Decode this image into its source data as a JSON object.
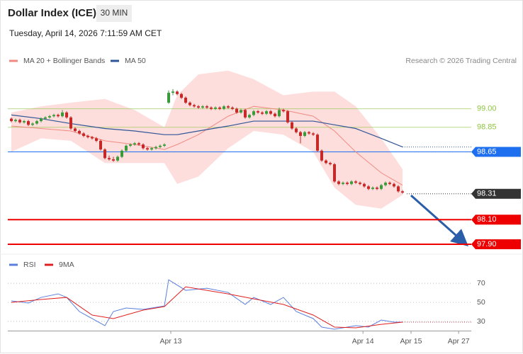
{
  "header": {
    "title": "Dollar Index (ICE)",
    "timeframe": "30 MIN",
    "timestamp": "Tuesday, April 14, 2026 7:11:59 AM CET"
  },
  "chart_data": [
    {
      "type": "candlestick",
      "credit": "Research © 2026 Trading Central",
      "up_color": "#3a9a3a",
      "down_color": "#c62828",
      "xlim": [
        0,
        108.17
      ],
      "ylim": [
        97.86,
        99.32
      ],
      "candles": [
        [
          98.92,
          98.93,
          98.89,
          98.9
        ],
        [
          98.9,
          98.92,
          98.89,
          98.91
        ],
        [
          98.91,
          98.92,
          98.88,
          98.89
        ],
        [
          98.89,
          98.91,
          98.88,
          98.9
        ],
        [
          98.9,
          98.91,
          98.86,
          98.87
        ],
        [
          98.87,
          98.89,
          98.86,
          98.88
        ],
        [
          98.88,
          98.91,
          98.87,
          98.9
        ],
        [
          98.9,
          98.93,
          98.89,
          98.92
        ],
        [
          98.92,
          98.94,
          98.91,
          98.93
        ],
        [
          98.93,
          98.95,
          98.92,
          98.94
        ],
        [
          98.94,
          98.96,
          98.93,
          98.95
        ],
        [
          98.95,
          98.96,
          98.93,
          98.94
        ],
        [
          98.94,
          98.99,
          98.93,
          98.97
        ],
        [
          98.97,
          98.98,
          98.92,
          98.93
        ],
        [
          98.93,
          98.94,
          98.83,
          98.84
        ],
        [
          98.84,
          98.85,
          98.81,
          98.82
        ],
        [
          98.82,
          98.83,
          98.79,
          98.8
        ],
        [
          98.8,
          98.81,
          98.77,
          98.78
        ],
        [
          98.78,
          98.79,
          98.76,
          98.77
        ],
        [
          98.77,
          98.78,
          98.75,
          98.76
        ],
        [
          98.76,
          98.77,
          98.73,
          98.74
        ],
        [
          98.74,
          98.75,
          98.66,
          98.67
        ],
        [
          98.67,
          98.68,
          98.59,
          98.6
        ],
        [
          98.6,
          98.62,
          98.58,
          98.59
        ],
        [
          98.59,
          98.61,
          98.57,
          98.58
        ],
        [
          98.58,
          98.62,
          98.57,
          98.61
        ],
        [
          98.61,
          98.67,
          98.6,
          98.66
        ],
        [
          98.66,
          98.71,
          98.65,
          98.7
        ],
        [
          98.7,
          98.72,
          98.69,
          98.71
        ],
        [
          98.71,
          98.73,
          98.7,
          98.72
        ],
        [
          98.72,
          98.73,
          98.7,
          98.71
        ],
        [
          98.71,
          98.72,
          98.67,
          98.68
        ],
        [
          98.68,
          98.69,
          98.66,
          98.67
        ],
        [
          98.67,
          98.69,
          98.66,
          98.68
        ],
        [
          98.68,
          98.7,
          98.67,
          98.69
        ],
        [
          98.69,
          98.71,
          98.68,
          98.7
        ],
        [
          98.7,
          98.72,
          98.69,
          98.71
        ],
        [
          99.05,
          99.15,
          99.04,
          99.13
        ],
        [
          99.13,
          99.16,
          99.11,
          99.14
        ],
        [
          99.14,
          99.15,
          99.11,
          99.12
        ],
        [
          99.12,
          99.13,
          99.08,
          99.09
        ],
        [
          99.09,
          99.1,
          99.04,
          99.05
        ],
        [
          99.05,
          99.06,
          99.02,
          99.03
        ],
        [
          99.03,
          99.04,
          99.01,
          99.02
        ],
        [
          99.02,
          99.03,
          99.0,
          99.01
        ],
        [
          99.01,
          99.03,
          99.0,
          99.02
        ],
        [
          99.02,
          99.03,
          99.0,
          99.01
        ],
        [
          99.01,
          99.02,
          98.99,
          99.0
        ],
        [
          99.0,
          99.02,
          98.99,
          99.01
        ],
        [
          99.01,
          99.02,
          98.99,
          99.0
        ],
        [
          99.0,
          99.03,
          98.99,
          99.02
        ],
        [
          99.02,
          99.03,
          99.0,
          99.01
        ],
        [
          99.01,
          99.02,
          98.99,
          99.0
        ],
        [
          99.0,
          99.01,
          98.96,
          98.97
        ],
        [
          98.97,
          99.0,
          98.96,
          98.99
        ],
        [
          98.99,
          99.0,
          98.92,
          98.93
        ],
        [
          98.93,
          98.96,
          98.92,
          98.95
        ],
        [
          98.95,
          98.99,
          98.94,
          98.98
        ],
        [
          98.98,
          98.99,
          98.96,
          98.97
        ],
        [
          98.97,
          98.98,
          98.95,
          98.96
        ],
        [
          98.96,
          98.99,
          98.95,
          98.98
        ],
        [
          98.98,
          98.99,
          98.95,
          98.96
        ],
        [
          98.96,
          98.97,
          98.93,
          98.94
        ],
        [
          98.94,
          99.01,
          98.93,
          98.99
        ],
        [
          98.99,
          99.0,
          98.97,
          98.98
        ],
        [
          98.98,
          98.99,
          98.88,
          98.89
        ],
        [
          98.89,
          98.9,
          98.83,
          98.84
        ],
        [
          98.84,
          98.85,
          98.8,
          98.81
        ],
        [
          98.81,
          98.82,
          98.72,
          98.78
        ],
        [
          98.78,
          98.82,
          98.77,
          98.81
        ],
        [
          98.81,
          98.82,
          98.79,
          98.8
        ],
        [
          98.8,
          98.81,
          98.78,
          98.79
        ],
        [
          98.79,
          98.8,
          98.65,
          98.66
        ],
        [
          98.66,
          98.67,
          98.57,
          98.58
        ],
        [
          98.58,
          98.59,
          98.55,
          98.56
        ],
        [
          98.56,
          98.57,
          98.54,
          98.55
        ],
        [
          98.55,
          98.56,
          98.4,
          98.41
        ],
        [
          98.41,
          98.42,
          98.38,
          98.39
        ],
        [
          98.39,
          98.41,
          98.38,
          98.4
        ],
        [
          98.4,
          98.41,
          98.38,
          98.39
        ],
        [
          98.39,
          98.42,
          98.38,
          98.41
        ],
        [
          98.41,
          98.42,
          98.39,
          98.4
        ],
        [
          98.4,
          98.41,
          98.38,
          98.39
        ],
        [
          98.39,
          98.4,
          98.36,
          98.37
        ],
        [
          98.37,
          98.38,
          98.34,
          98.35
        ],
        [
          98.35,
          98.37,
          98.34,
          98.36
        ],
        [
          98.36,
          98.37,
          98.34,
          98.35
        ],
        [
          98.35,
          98.39,
          98.34,
          98.38
        ],
        [
          98.38,
          98.41,
          98.37,
          98.4
        ],
        [
          98.4,
          98.41,
          98.38,
          98.39
        ],
        [
          98.39,
          98.4,
          98.36,
          98.37
        ],
        [
          98.37,
          98.38,
          98.32,
          98.33
        ],
        [
          98.33,
          98.34,
          98.31,
          98.32
        ]
      ],
      "overlays": [
        {
          "name": "MA 20 + Bollinger Bands",
          "color": "#f08a80",
          "band_color": "#fdd8d6",
          "x": [
            0,
            7,
            14,
            22,
            29,
            36,
            39,
            44,
            51,
            57,
            64,
            71,
            76,
            81,
            87,
            92
          ],
          "values": [
            98.86,
            98.84,
            98.82,
            98.74,
            98.71,
            98.67,
            98.71,
            98.79,
            98.94,
            99.02,
            98.99,
            98.94,
            98.82,
            98.65,
            98.48,
            98.38
          ],
          "upper": [
            98.97,
            99.02,
            99.05,
            99.08,
            98.99,
            98.85,
            99.11,
            99.28,
            99.31,
            99.24,
            99.11,
            99.14,
            99.14,
            99.02,
            98.76,
            98.51
          ],
          "lower": [
            98.65,
            98.76,
            98.74,
            98.56,
            98.56,
            98.56,
            98.39,
            98.45,
            98.68,
            98.82,
            98.79,
            98.65,
            98.36,
            98.22,
            98.19,
            98.3
          ]
        },
        {
          "name": "MA 50",
          "color": "#2f5597",
          "x": [
            0,
            7,
            14,
            22,
            29,
            36,
            39,
            44,
            51,
            57,
            64,
            71,
            76,
            81,
            87,
            92
          ],
          "values": [
            98.95,
            98.92,
            98.88,
            98.84,
            98.82,
            98.79,
            98.79,
            98.82,
            98.86,
            98.9,
            98.9,
            98.9,
            98.87,
            98.84,
            98.76,
            98.69
          ]
        }
      ],
      "levels": [
        {
          "value": 99,
          "label": "99.00",
          "color": "#8dc63f",
          "line": "solid",
          "box": false
        },
        {
          "value": 98.85,
          "label": "98.85",
          "color": "#8dc63f",
          "line": "solid",
          "box": false
        },
        {
          "value": 98.65,
          "label": "98.65",
          "color": "#1e6ff0",
          "line": "solid",
          "box": true
        },
        {
          "value": 98.31,
          "label": "98.31",
          "color": "#333333",
          "line": "dotted",
          "box": true
        },
        {
          "value": 98.1,
          "label": "98.10",
          "color": "#ee0000",
          "line": "thick",
          "box": true
        },
        {
          "value": 97.9,
          "label": "97.90",
          "color": "#ee0000",
          "line": "thick",
          "box": true
        }
      ]
    },
    {
      "type": "line",
      "xlim": [
        0,
        108.17
      ],
      "ylim": [
        20,
        79
      ],
      "yticks": [
        70,
        50,
        30
      ],
      "grid": true,
      "xticks": [
        {
          "value": 37.5,
          "label": "Apr 13"
        },
        {
          "value": 82.7,
          "label": "Apr 14"
        },
        {
          "value": 94,
          "label": "Apr 15"
        },
        {
          "value": 105.2,
          "label": "Apr 27"
        }
      ],
      "series": [
        {
          "name": "RSI",
          "color": "#5b7fde",
          "x": [
            0,
            4,
            7,
            11,
            13,
            16,
            19,
            22,
            24,
            27,
            31,
            36,
            37,
            41,
            46,
            51,
            55,
            57,
            61,
            64,
            67,
            71,
            73,
            76,
            81,
            84,
            87,
            90,
            92
          ],
          "values": [
            51.5,
            49.3,
            55.2,
            58.9,
            55.2,
            40.4,
            33.0,
            25.6,
            40.4,
            44.1,
            42.6,
            46.3,
            73.7,
            62.6,
            64.8,
            60.4,
            47.8,
            55.2,
            47.8,
            55.2,
            40.4,
            33.0,
            24.1,
            21.9,
            25.6,
            24.1,
            31.5,
            29.3,
            29.3
          ]
        },
        {
          "name": "9MA",
          "color": "#e02020",
          "x": [
            0,
            7,
            13,
            19,
            24,
            31,
            36,
            41,
            46,
            51,
            57,
            64,
            71,
            76,
            81,
            87,
            92
          ],
          "values": [
            50.0,
            53.0,
            55.2,
            36.7,
            33.0,
            41.9,
            45.6,
            66.3,
            62.6,
            58.9,
            53.7,
            47.8,
            36.7,
            24.1,
            23.3,
            27.0,
            29.3
          ]
        }
      ]
    }
  ]
}
